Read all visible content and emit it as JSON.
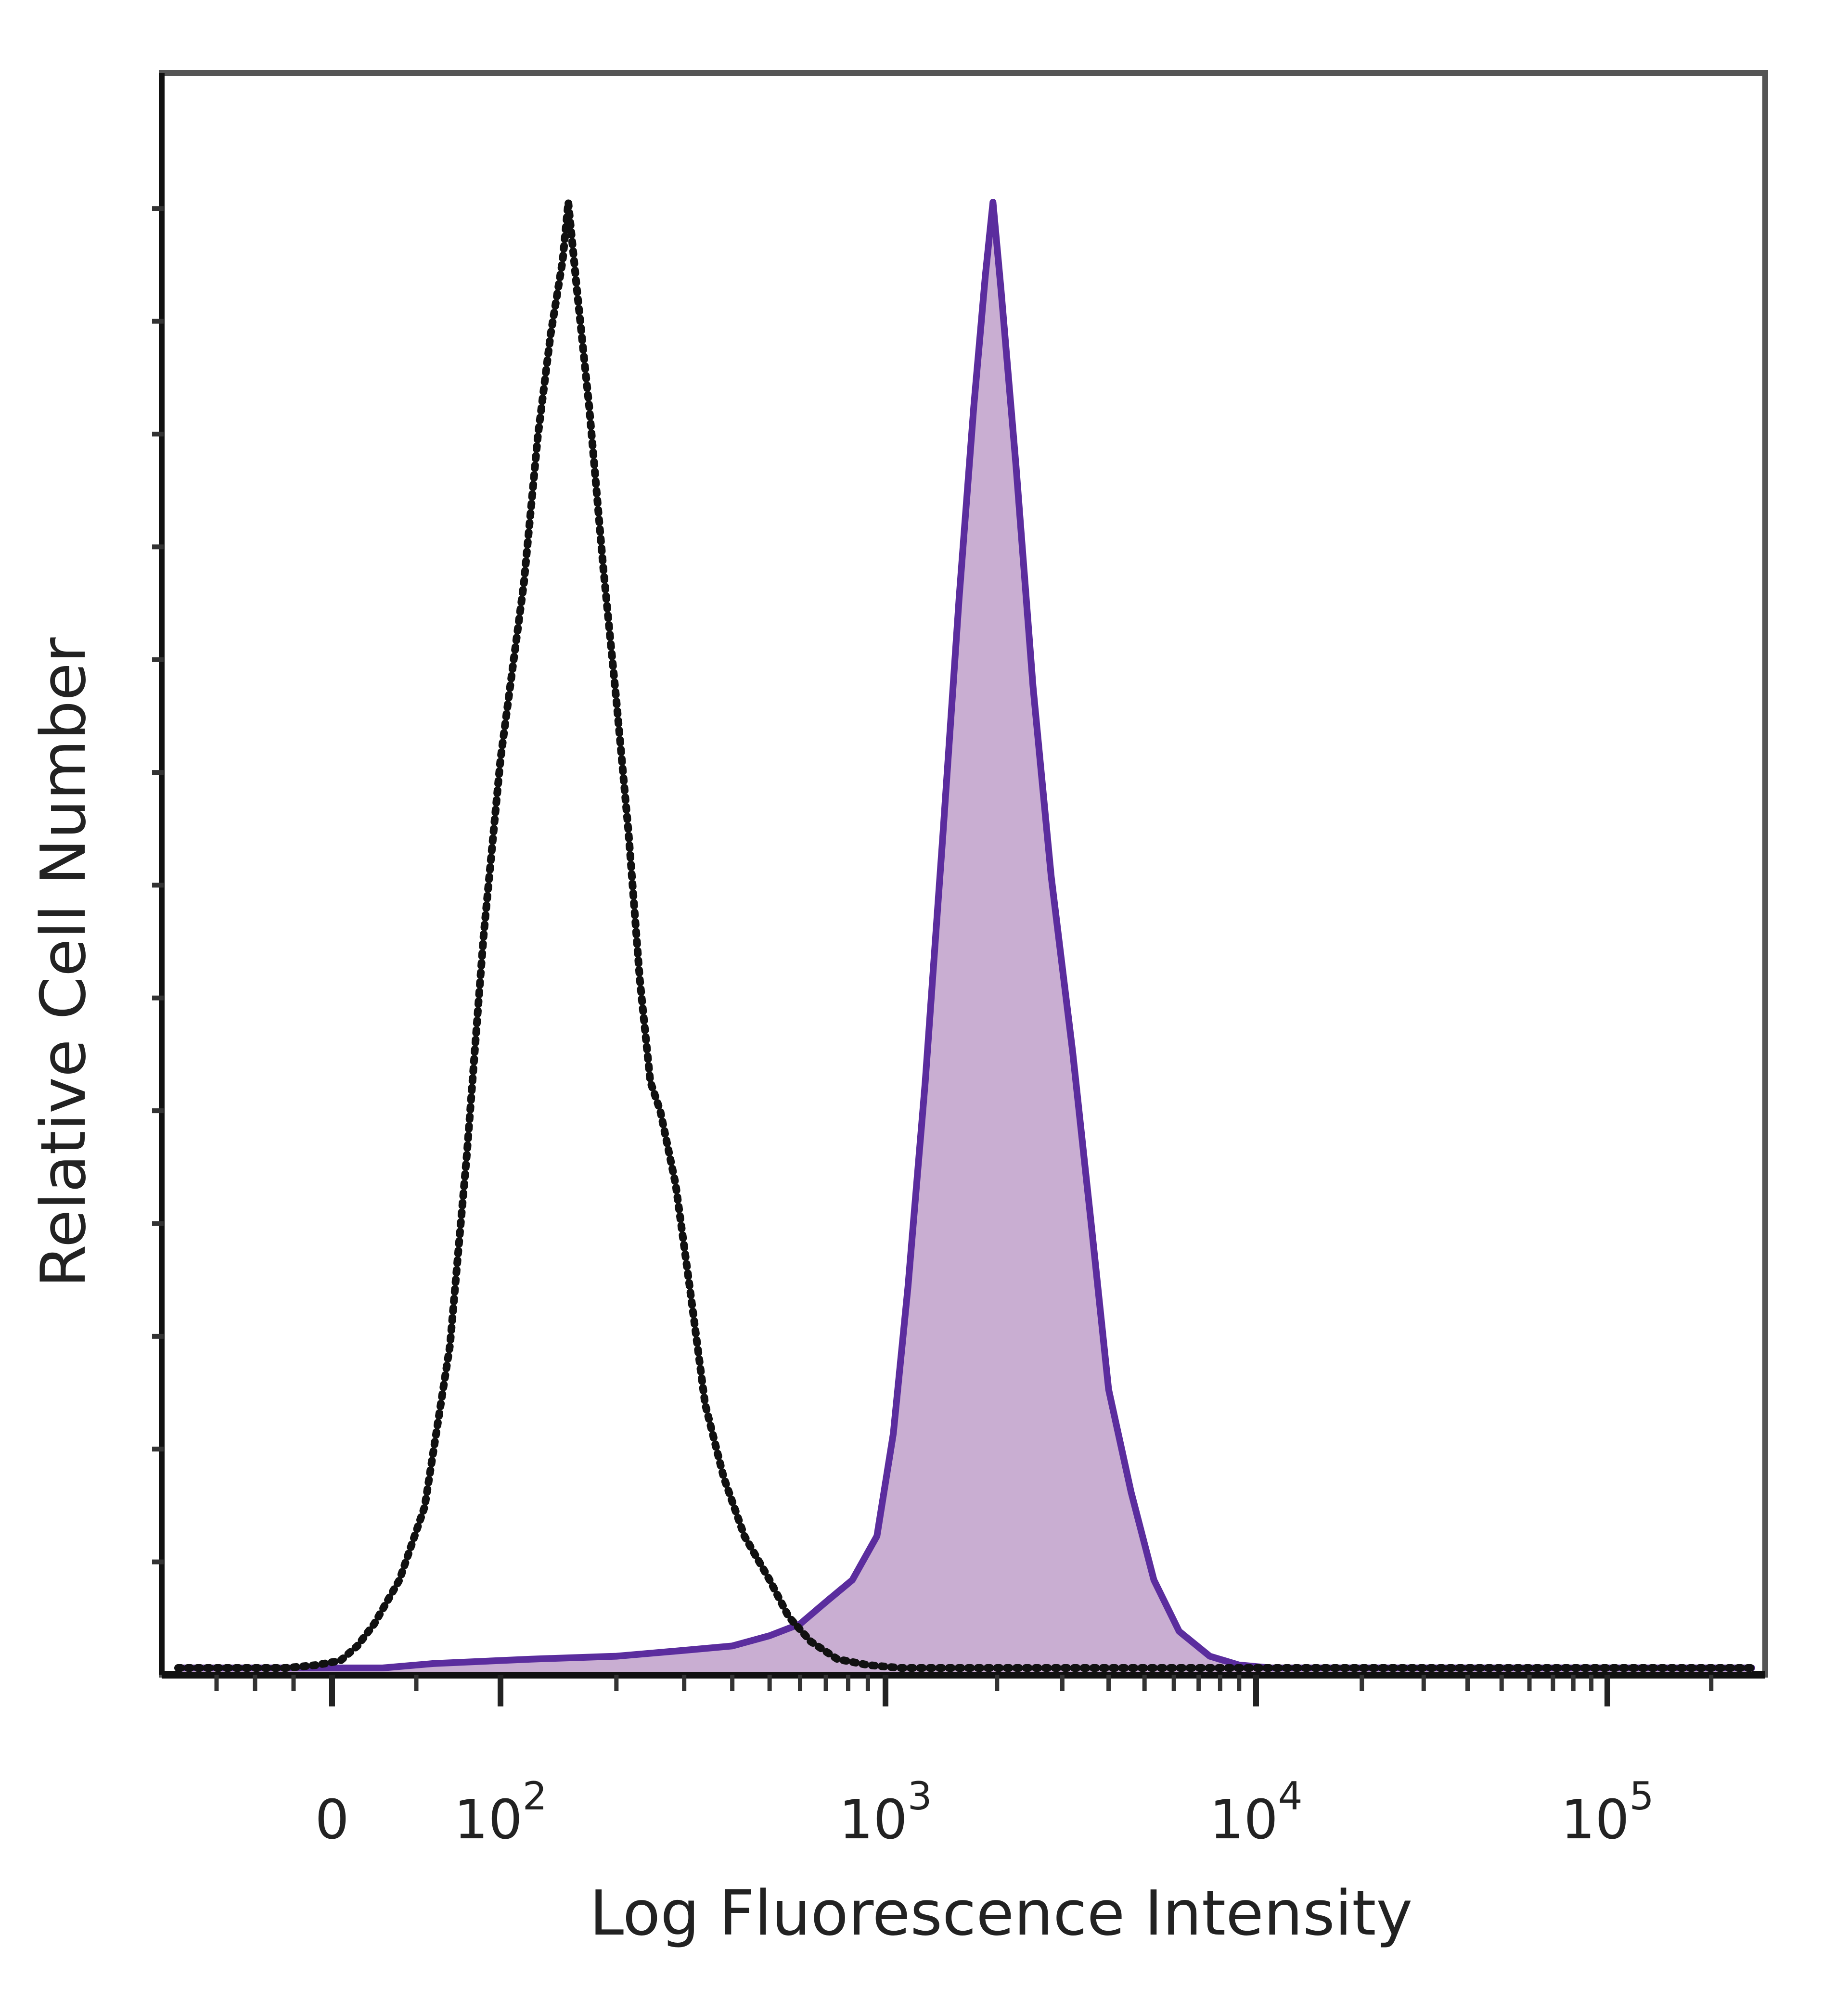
{
  "chart_data": {
    "type": "area",
    "xlabel": "Log Fluorescence Intensity",
    "ylabel": "Relative Cell Number",
    "x_scale": "biexponential",
    "x_ticks": [
      {
        "value": 0,
        "label": "0",
        "base": "0",
        "exp": ""
      },
      {
        "value": 100,
        "label": "10^2",
        "base": "10",
        "exp": "2"
      },
      {
        "value": 1000,
        "label": "10^3",
        "base": "10",
        "exp": "3"
      },
      {
        "value": 10000,
        "label": "10^4",
        "base": "10",
        "exp": "4"
      },
      {
        "value": 100000,
        "label": "10^5",
        "base": "10",
        "exp": "5"
      }
    ],
    "xlim": [
      -200,
      262144
    ],
    "ylim": [
      0,
      100
    ],
    "grid": false,
    "series": [
      {
        "style": "dotted",
        "color": "#111111",
        "filled": false,
        "points": [
          [
            -200,
            0
          ],
          [
            -120,
            0
          ],
          [
            -60,
            0
          ],
          [
            -20,
            0.2
          ],
          [
            5,
            0.5
          ],
          [
            15,
            1.5
          ],
          [
            25,
            3
          ],
          [
            40,
            6
          ],
          [
            55,
            11
          ],
          [
            70,
            22
          ],
          [
            80,
            35
          ],
          [
            90,
            50
          ],
          [
            100,
            62
          ],
          [
            115,
            74
          ],
          [
            125,
            84
          ],
          [
            135,
            91
          ],
          [
            145,
            96
          ],
          [
            150,
            100
          ],
          [
            158,
            94
          ],
          [
            170,
            86
          ],
          [
            185,
            75
          ],
          [
            200,
            66
          ],
          [
            215,
            57
          ],
          [
            230,
            47
          ],
          [
            245,
            40
          ],
          [
            260,
            38
          ],
          [
            285,
            33
          ],
          [
            310,
            26
          ],
          [
            340,
            18
          ],
          [
            380,
            13
          ],
          [
            430,
            9
          ],
          [
            500,
            6
          ],
          [
            560,
            3.5
          ],
          [
            640,
            1.8
          ],
          [
            750,
            0.6
          ],
          [
            900,
            0.2
          ],
          [
            1100,
            0
          ],
          [
            262144,
            0
          ]
        ]
      },
      {
        "style": "solid",
        "color": "#5b2d9e",
        "fill": "#c9aed2",
        "filled": true,
        "points": [
          [
            -200,
            0
          ],
          [
            30,
            0
          ],
          [
            60,
            0.3
          ],
          [
            120,
            0.6
          ],
          [
            200,
            0.8
          ],
          [
            300,
            1.2
          ],
          [
            400,
            1.5
          ],
          [
            500,
            2.2
          ],
          [
            600,
            3
          ],
          [
            700,
            4.5
          ],
          [
            820,
            6
          ],
          [
            950,
            9
          ],
          [
            1050,
            16
          ],
          [
            1150,
            26
          ],
          [
            1280,
            40
          ],
          [
            1430,
            57
          ],
          [
            1580,
            73
          ],
          [
            1730,
            86
          ],
          [
            1860,
            95
          ],
          [
            1950,
            100
          ],
          [
            2050,
            94
          ],
          [
            2250,
            82
          ],
          [
            2500,
            67
          ],
          [
            2800,
            54
          ],
          [
            3200,
            42
          ],
          [
            3600,
            30
          ],
          [
            4000,
            19
          ],
          [
            4600,
            12
          ],
          [
            5300,
            6
          ],
          [
            6200,
            2.5
          ],
          [
            7500,
            0.8
          ],
          [
            9000,
            0.2
          ],
          [
            11000,
            0
          ],
          [
            262144,
            0
          ]
        ]
      }
    ]
  }
}
